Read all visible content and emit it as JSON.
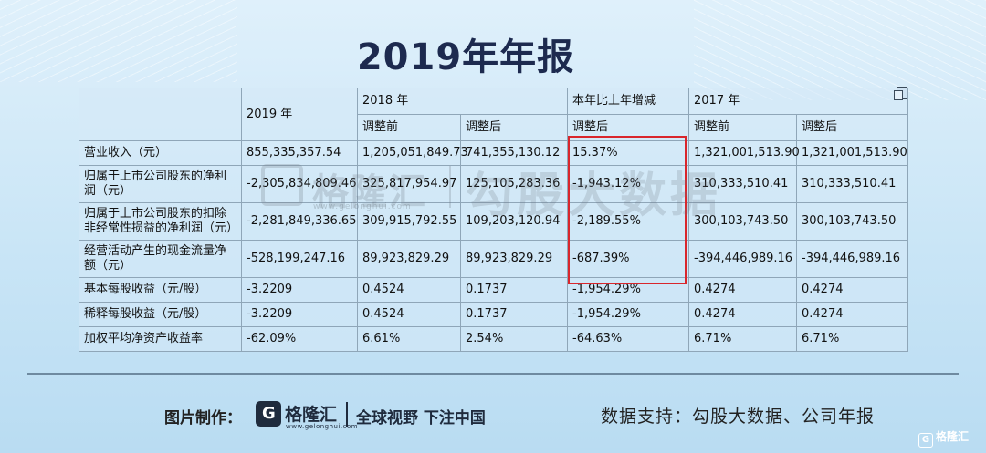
{
  "title": "2019年年报",
  "table": {
    "header": {
      "y2019": "2019 年",
      "y2018": "2018 年",
      "change": "本年比上年增减",
      "y2017": "2017 年"
    },
    "subheader": {
      "before": "调整前",
      "after": "调整后",
      "change_after": "调整后",
      "before_2017": "调整前",
      "after_2017": "调整后"
    },
    "rows": [
      {
        "label": "营业收入（元）",
        "v2019": "855,335,357.54",
        "v2018_before": "1,205,051,849.73",
        "v2018_after": "741,355,130.12",
        "change": "15.37%",
        "v2017_before": "1,321,001,513.90",
        "v2017_after": "1,321,001,513.90"
      },
      {
        "label": "归属于上市公司股东的净利润（元）",
        "v2019": "-2,305,834,809.46",
        "v2018_before": "325,817,954.97",
        "v2018_after": "125,105,283.36",
        "change": "-1,943.12%",
        "v2017_before": "310,333,510.41",
        "v2017_after": "310,333,510.41"
      },
      {
        "label": "归属于上市公司股东的扣除非经常性损益的净利润（元）",
        "v2019": "-2,281,849,336.65",
        "v2018_before": "309,915,792.55",
        "v2018_after": "109,203,120.94",
        "change": "-2,189.55%",
        "v2017_before": "300,103,743.50",
        "v2017_after": "300,103,743.50"
      },
      {
        "label": "经营活动产生的现金流量净额（元）",
        "v2019": "-528,199,247.16",
        "v2018_before": "89,923,829.29",
        "v2018_after": "89,923,829.29",
        "change": "-687.39%",
        "v2017_before": "-394,446,989.16",
        "v2017_after": "-394,446,989.16"
      },
      {
        "label": "基本每股收益（元/股）",
        "v2019": "-3.2209",
        "v2018_before": "0.4524",
        "v2018_after": "0.1737",
        "change": "-1,954.29%",
        "v2017_before": "0.4274",
        "v2017_after": "0.4274"
      },
      {
        "label": "稀释每股收益（元/股）",
        "v2019": "-3.2209",
        "v2018_before": "0.4524",
        "v2018_after": "0.1737",
        "change": "-1,954.29%",
        "v2017_before": "0.4274",
        "v2017_after": "0.4274"
      },
      {
        "label": "加权平均净资产收益率",
        "v2019": "-62.09%",
        "v2018_before": "6.61%",
        "v2018_after": "2.54%",
        "change": "-64.63%",
        "v2017_before": "6.71%",
        "v2017_after": "6.71%"
      }
    ]
  },
  "watermark": {
    "brand": "格隆汇",
    "url": "www.gelonghui.com",
    "big": "勾股大数据"
  },
  "footer": {
    "made_by": "图片制作：",
    "logo_name": "格隆汇",
    "logo_url": "www.gelonghui.com",
    "slogan": "全球视野 下注中国",
    "source": "数据支持：勾股大数据、公司年报",
    "corner": "格隆汇"
  },
  "colors": {
    "highlight": "#d9262c",
    "title": "#1d2a4f",
    "background": "#c9e5f6"
  }
}
